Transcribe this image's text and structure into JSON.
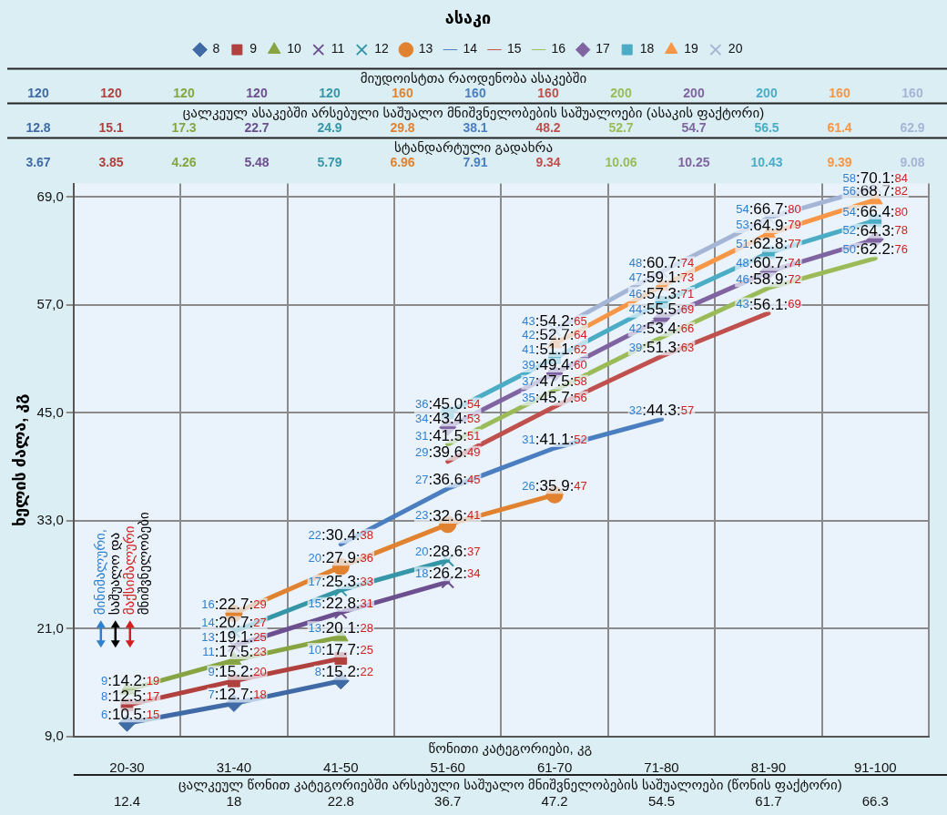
{
  "chart_data": {
    "type": "line",
    "legend_title": "ასაკი",
    "xlabel": "წონითი კატეგორიები, კგ",
    "ylabel": "ხელის ძალა, კგ",
    "categories": [
      "20-30",
      "31-40",
      "41-50",
      "51-60",
      "61-70",
      "71-80",
      "81-90",
      "91-100"
    ],
    "ylim": [
      9,
      70.5
    ],
    "yticks": [
      {
        "value": 9,
        "label": "9,0"
      },
      {
        "value": 21,
        "label": "21,0"
      },
      {
        "value": 33,
        "label": "33,0"
      },
      {
        "value": 45,
        "label": "45,0"
      },
      {
        "value": 57,
        "label": "57,0"
      },
      {
        "value": 69,
        "label": "69,0"
      }
    ],
    "grid": true,
    "legend": "top",
    "line_style": "solid",
    "series": [
      {
        "name": "8",
        "color": "#3f6aa6",
        "marker": "diamond",
        "values": [
          10.5,
          12.7,
          15.2,
          null,
          null,
          null,
          null,
          null
        ],
        "value_labels": [
          "6:10.5:15",
          "7:12.7:18",
          "8:15.2:22",
          null,
          null,
          null,
          null,
          null
        ]
      },
      {
        "name": "9",
        "color": "#b0413e",
        "marker": "square",
        "values": [
          12.5,
          15.2,
          17.7,
          null,
          null,
          null,
          null,
          null
        ],
        "value_labels": [
          "8:12.5:17",
          "9:15.2:20",
          "10:17.7:25",
          null,
          null,
          null,
          null,
          null
        ]
      },
      {
        "name": "10",
        "color": "#86a542",
        "marker": "triangle",
        "values": [
          14.2,
          17.5,
          20.1,
          null,
          null,
          null,
          null,
          null
        ],
        "value_labels": [
          "9:14.2:19",
          "11:17.5:23",
          "13:20.1:28",
          null,
          null,
          null,
          null,
          null
        ]
      },
      {
        "name": "11",
        "color": "#6c4f8f",
        "marker": "cross",
        "values": [
          null,
          19.1,
          22.8,
          26.2,
          null,
          null,
          null,
          null
        ],
        "value_labels": [
          null,
          "13:19.1:25",
          "15:22.8:31",
          "18:26.2:34",
          null,
          null,
          null,
          null
        ]
      },
      {
        "name": "12",
        "color": "#3596a8",
        "marker": "cross",
        "values": [
          null,
          20.7,
          25.3,
          28.6,
          null,
          null,
          null,
          null
        ],
        "value_labels": [
          null,
          "14:20.7:27",
          "17:25.3:33",
          "20:28.6:37",
          null,
          null,
          null,
          null
        ]
      },
      {
        "name": "13",
        "color": "#e0822f",
        "marker": "circle",
        "values": [
          null,
          22.7,
          27.9,
          32.6,
          35.9,
          null,
          null,
          null
        ],
        "value_labels": [
          null,
          "16:22.7:29",
          "20:27.9:36",
          "23:32.6:41",
          "26:35.9:47",
          null,
          null,
          null
        ]
      },
      {
        "name": "14",
        "color": "#4a7ec0",
        "marker": "none",
        "values": [
          null,
          null,
          30.4,
          36.6,
          41.1,
          44.3,
          null,
          null
        ],
        "value_labels": [
          null,
          null,
          "22:30.4:38",
          "27:36.6:45",
          "31:41.1:52",
          "32:44.3:57",
          null,
          null
        ]
      },
      {
        "name": "15",
        "color": "#c0504d",
        "marker": "none",
        "values": [
          null,
          null,
          null,
          39.6,
          45.7,
          51.3,
          56.1,
          null
        ],
        "value_labels": [
          null,
          null,
          null,
          "29:39.6:49",
          "35:45.7:56",
          "39:51.3:63",
          "43:56.1:69",
          null
        ]
      },
      {
        "name": "16",
        "color": "#9bbb59",
        "marker": "none",
        "values": [
          null,
          null,
          null,
          41.5,
          47.5,
          53.4,
          58.9,
          62.2
        ],
        "value_labels": [
          null,
          null,
          null,
          "31:41.5:51",
          "37:47.5:58",
          "42:53.4:66",
          "46:58.9:72",
          "50:62.2:76"
        ]
      },
      {
        "name": "17",
        "color": "#8064a2",
        "marker": "diamond",
        "values": [
          null,
          null,
          null,
          43.4,
          49.4,
          55.5,
          60.7,
          64.3
        ],
        "value_labels": [
          null,
          null,
          null,
          "34:43.4:53",
          "39:49.4:60",
          "44:55.5:69",
          "48:60.7:74",
          "52:64.3:78"
        ]
      },
      {
        "name": "18",
        "color": "#4bacc6",
        "marker": "square",
        "values": [
          null,
          null,
          null,
          45.0,
          51.1,
          57.3,
          62.8,
          66.4
        ],
        "value_labels": [
          null,
          null,
          null,
          "36:45.0:54",
          "41:51.1:62",
          "46:57.3:71",
          "51:62.8:77",
          "54:66.4:80"
        ]
      },
      {
        "name": "19",
        "color": "#f79646",
        "marker": "triangle",
        "values": [
          null,
          null,
          null,
          null,
          52.7,
          59.1,
          64.9,
          68.7
        ],
        "value_labels": [
          null,
          null,
          null,
          null,
          "42:52.7:64",
          "47:59.1:73",
          "53:64.9:79",
          "56:68.7:82"
        ]
      },
      {
        "name": "20",
        "color": "#a5b5d6",
        "marker": "cross",
        "values": [
          null,
          null,
          null,
          null,
          54.2,
          60.7,
          66.7,
          70.1
        ],
        "value_labels": [
          null,
          null,
          null,
          null,
          "43:54.2:65",
          "48:60.7:74",
          "54:66.7:80",
          "58:70.1:84"
        ]
      }
    ],
    "annotations": [
      "მიუდოისტთა რაოდენობა ასაკებში",
      "120",
      "120",
      "120",
      "120",
      "120",
      "160",
      "160",
      "160",
      "200",
      "200",
      "200",
      "160",
      "160",
      "ცალკეულ ასაკებში არსებული საშუალო მნიშვნელობების საშუალოები (ასაკის ფაქტორი)",
      "12.8",
      "15.1",
      "17.3",
      "22.7",
      "24.9",
      "29.8",
      "38.1",
      "48.2",
      "52.7",
      "54.7",
      "56.5",
      "61.4",
      "62.9",
      "სტანდარტული გადახრა",
      "3.67",
      "3.85",
      "4.26",
      "5.48",
      "5.79",
      "6.96",
      "7.91",
      "9.34",
      "10.06",
      "10.25",
      "10.43",
      "9.39",
      "9.08",
      "ცალკეულ წონით კატეგორიებში არსებული საშუალო მნიშვნელობების საშუალოები (წონის ფაქტორი)",
      "12.4",
      "18",
      "22.8",
      "36.7",
      "47.2",
      "54.5",
      "61.7",
      "66.3",
      "მინიმალური,",
      "საშუალო და",
      "მაქსიმალური",
      "მნიშვნელობები"
    ]
  }
}
